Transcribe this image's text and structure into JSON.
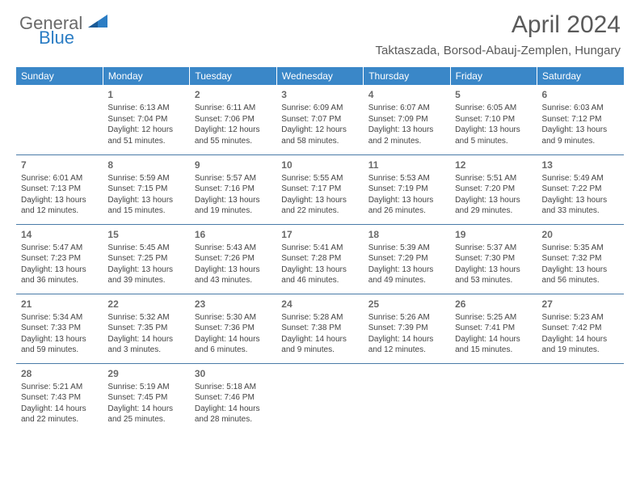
{
  "logo": {
    "general": "General",
    "blue": "Blue"
  },
  "title": "April 2024",
  "location": "Taktaszada, Borsod-Abauj-Zemplen, Hungary",
  "colors": {
    "header_bg": "#3a87c8",
    "header_text": "#ffffff",
    "cell_border": "#4a7ba8",
    "text": "#444444",
    "title_text": "#5a5a5a",
    "logo_gray": "#6a6a6a",
    "logo_blue": "#2b7dc4"
  },
  "day_headers": [
    "Sunday",
    "Monday",
    "Tuesday",
    "Wednesday",
    "Thursday",
    "Friday",
    "Saturday"
  ],
  "weeks": [
    [
      {
        "day": "",
        "sunrise": "",
        "sunset": "",
        "daylight1": "",
        "daylight2": ""
      },
      {
        "day": "1",
        "sunrise": "Sunrise: 6:13 AM",
        "sunset": "Sunset: 7:04 PM",
        "daylight1": "Daylight: 12 hours",
        "daylight2": "and 51 minutes."
      },
      {
        "day": "2",
        "sunrise": "Sunrise: 6:11 AM",
        "sunset": "Sunset: 7:06 PM",
        "daylight1": "Daylight: 12 hours",
        "daylight2": "and 55 minutes."
      },
      {
        "day": "3",
        "sunrise": "Sunrise: 6:09 AM",
        "sunset": "Sunset: 7:07 PM",
        "daylight1": "Daylight: 12 hours",
        "daylight2": "and 58 minutes."
      },
      {
        "day": "4",
        "sunrise": "Sunrise: 6:07 AM",
        "sunset": "Sunset: 7:09 PM",
        "daylight1": "Daylight: 13 hours",
        "daylight2": "and 2 minutes."
      },
      {
        "day": "5",
        "sunrise": "Sunrise: 6:05 AM",
        "sunset": "Sunset: 7:10 PM",
        "daylight1": "Daylight: 13 hours",
        "daylight2": "and 5 minutes."
      },
      {
        "day": "6",
        "sunrise": "Sunrise: 6:03 AM",
        "sunset": "Sunset: 7:12 PM",
        "daylight1": "Daylight: 13 hours",
        "daylight2": "and 9 minutes."
      }
    ],
    [
      {
        "day": "7",
        "sunrise": "Sunrise: 6:01 AM",
        "sunset": "Sunset: 7:13 PM",
        "daylight1": "Daylight: 13 hours",
        "daylight2": "and 12 minutes."
      },
      {
        "day": "8",
        "sunrise": "Sunrise: 5:59 AM",
        "sunset": "Sunset: 7:15 PM",
        "daylight1": "Daylight: 13 hours",
        "daylight2": "and 15 minutes."
      },
      {
        "day": "9",
        "sunrise": "Sunrise: 5:57 AM",
        "sunset": "Sunset: 7:16 PM",
        "daylight1": "Daylight: 13 hours",
        "daylight2": "and 19 minutes."
      },
      {
        "day": "10",
        "sunrise": "Sunrise: 5:55 AM",
        "sunset": "Sunset: 7:17 PM",
        "daylight1": "Daylight: 13 hours",
        "daylight2": "and 22 minutes."
      },
      {
        "day": "11",
        "sunrise": "Sunrise: 5:53 AM",
        "sunset": "Sunset: 7:19 PM",
        "daylight1": "Daylight: 13 hours",
        "daylight2": "and 26 minutes."
      },
      {
        "day": "12",
        "sunrise": "Sunrise: 5:51 AM",
        "sunset": "Sunset: 7:20 PM",
        "daylight1": "Daylight: 13 hours",
        "daylight2": "and 29 minutes."
      },
      {
        "day": "13",
        "sunrise": "Sunrise: 5:49 AM",
        "sunset": "Sunset: 7:22 PM",
        "daylight1": "Daylight: 13 hours",
        "daylight2": "and 33 minutes."
      }
    ],
    [
      {
        "day": "14",
        "sunrise": "Sunrise: 5:47 AM",
        "sunset": "Sunset: 7:23 PM",
        "daylight1": "Daylight: 13 hours",
        "daylight2": "and 36 minutes."
      },
      {
        "day": "15",
        "sunrise": "Sunrise: 5:45 AM",
        "sunset": "Sunset: 7:25 PM",
        "daylight1": "Daylight: 13 hours",
        "daylight2": "and 39 minutes."
      },
      {
        "day": "16",
        "sunrise": "Sunrise: 5:43 AM",
        "sunset": "Sunset: 7:26 PM",
        "daylight1": "Daylight: 13 hours",
        "daylight2": "and 43 minutes."
      },
      {
        "day": "17",
        "sunrise": "Sunrise: 5:41 AM",
        "sunset": "Sunset: 7:28 PM",
        "daylight1": "Daylight: 13 hours",
        "daylight2": "and 46 minutes."
      },
      {
        "day": "18",
        "sunrise": "Sunrise: 5:39 AM",
        "sunset": "Sunset: 7:29 PM",
        "daylight1": "Daylight: 13 hours",
        "daylight2": "and 49 minutes."
      },
      {
        "day": "19",
        "sunrise": "Sunrise: 5:37 AM",
        "sunset": "Sunset: 7:30 PM",
        "daylight1": "Daylight: 13 hours",
        "daylight2": "and 53 minutes."
      },
      {
        "day": "20",
        "sunrise": "Sunrise: 5:35 AM",
        "sunset": "Sunset: 7:32 PM",
        "daylight1": "Daylight: 13 hours",
        "daylight2": "and 56 minutes."
      }
    ],
    [
      {
        "day": "21",
        "sunrise": "Sunrise: 5:34 AM",
        "sunset": "Sunset: 7:33 PM",
        "daylight1": "Daylight: 13 hours",
        "daylight2": "and 59 minutes."
      },
      {
        "day": "22",
        "sunrise": "Sunrise: 5:32 AM",
        "sunset": "Sunset: 7:35 PM",
        "daylight1": "Daylight: 14 hours",
        "daylight2": "and 3 minutes."
      },
      {
        "day": "23",
        "sunrise": "Sunrise: 5:30 AM",
        "sunset": "Sunset: 7:36 PM",
        "daylight1": "Daylight: 14 hours",
        "daylight2": "and 6 minutes."
      },
      {
        "day": "24",
        "sunrise": "Sunrise: 5:28 AM",
        "sunset": "Sunset: 7:38 PM",
        "daylight1": "Daylight: 14 hours",
        "daylight2": "and 9 minutes."
      },
      {
        "day": "25",
        "sunrise": "Sunrise: 5:26 AM",
        "sunset": "Sunset: 7:39 PM",
        "daylight1": "Daylight: 14 hours",
        "daylight2": "and 12 minutes."
      },
      {
        "day": "26",
        "sunrise": "Sunrise: 5:25 AM",
        "sunset": "Sunset: 7:41 PM",
        "daylight1": "Daylight: 14 hours",
        "daylight2": "and 15 minutes."
      },
      {
        "day": "27",
        "sunrise": "Sunrise: 5:23 AM",
        "sunset": "Sunset: 7:42 PM",
        "daylight1": "Daylight: 14 hours",
        "daylight2": "and 19 minutes."
      }
    ],
    [
      {
        "day": "28",
        "sunrise": "Sunrise: 5:21 AM",
        "sunset": "Sunset: 7:43 PM",
        "daylight1": "Daylight: 14 hours",
        "daylight2": "and 22 minutes."
      },
      {
        "day": "29",
        "sunrise": "Sunrise: 5:19 AM",
        "sunset": "Sunset: 7:45 PM",
        "daylight1": "Daylight: 14 hours",
        "daylight2": "and 25 minutes."
      },
      {
        "day": "30",
        "sunrise": "Sunrise: 5:18 AM",
        "sunset": "Sunset: 7:46 PM",
        "daylight1": "Daylight: 14 hours",
        "daylight2": "and 28 minutes."
      },
      {
        "day": "",
        "sunrise": "",
        "sunset": "",
        "daylight1": "",
        "daylight2": ""
      },
      {
        "day": "",
        "sunrise": "",
        "sunset": "",
        "daylight1": "",
        "daylight2": ""
      },
      {
        "day": "",
        "sunrise": "",
        "sunset": "",
        "daylight1": "",
        "daylight2": ""
      },
      {
        "day": "",
        "sunrise": "",
        "sunset": "",
        "daylight1": "",
        "daylight2": ""
      }
    ]
  ]
}
